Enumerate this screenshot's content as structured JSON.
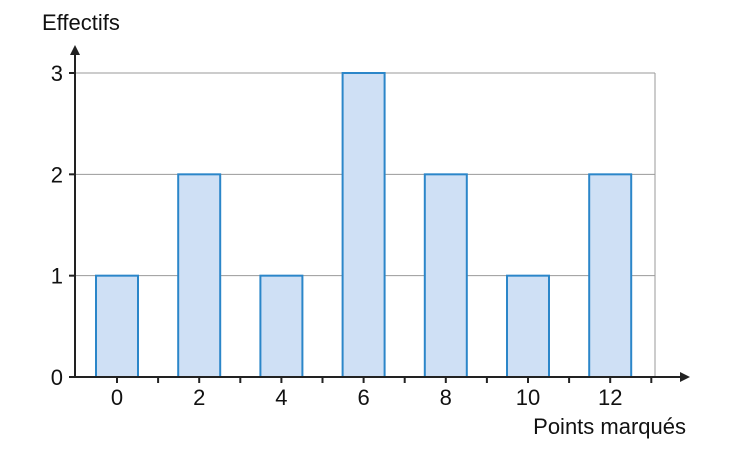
{
  "chart_data": {
    "type": "bar",
    "categories": [
      "0",
      "2",
      "4",
      "6",
      "8",
      "10",
      "12"
    ],
    "values": [
      1,
      2,
      1,
      3,
      2,
      1,
      2
    ],
    "xlabel": "Points marqués",
    "ylabel": "Effectifs",
    "ylim": [
      0,
      3
    ],
    "yticks": [
      0,
      1,
      2,
      3
    ],
    "grid": true,
    "colors": {
      "bar_fill": "#cfe0f5",
      "bar_stroke": "#2b86c9",
      "grid": "#9a9a9a",
      "axis": "#222222"
    }
  }
}
